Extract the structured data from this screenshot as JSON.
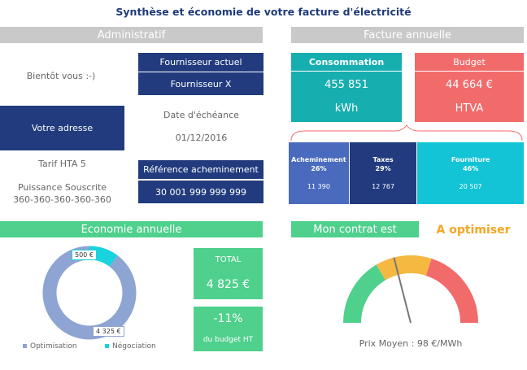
{
  "title": "Synthèse et économie de votre facture d'électricité",
  "administratif": {
    "header": "Administratif",
    "greeting": "Bientôt vous :-)",
    "fournisseur_actuel_label": "Fournisseur actuel",
    "fournisseur_value": "Fournisseur X",
    "adresse_label": "Votre adresse",
    "date_label": "Date d'échéance",
    "date_value": "01/12/2016",
    "tarif": "Tarif HTA 5",
    "puissance_label": "Puissance Souscrite",
    "puissance_value": "360-360-360-360-360",
    "reference_label": "Référence acheminement",
    "reference_value": "30 001 999 999 999"
  },
  "facture": {
    "header": "Facture annuelle",
    "consommation_label": "Consommation",
    "consommation_value": "455 851",
    "consommation_unit": "kWh",
    "budget_label": "Budget",
    "budget_value": "44 664 €",
    "budget_unit": "HTVA",
    "breakdown": [
      {
        "label": "Acheminement",
        "pct": "26%",
        "value": "11 390",
        "share": 0.26,
        "color": "#4a6bbd"
      },
      {
        "label": "Taxes",
        "pct": "29%",
        "value": "12 767",
        "share": 0.29,
        "color": "#223b7e"
      },
      {
        "label": "Fourniture",
        "pct": "46%",
        "value": "20 507",
        "share": 0.46,
        "color": "#12c4d6"
      }
    ]
  },
  "economie": {
    "header": "Economie annuelle",
    "donut": {
      "negociation_value": 500,
      "negociation_label": "500 €",
      "optimisation_value": 4325,
      "optimisation_label": "4 325 €",
      "optimisation_color": "#8ea4d2",
      "negociation_color": "#19d3df"
    },
    "legend_optimisation": "Optimisation",
    "legend_negociation": "Négociation",
    "total_label": "TOTAL",
    "total_value": "4 825 €",
    "pct_value": "-11%",
    "pct_caption": "du budget HT"
  },
  "contrat": {
    "header": "Mon contrat est",
    "status": "A optimiser",
    "status_color": "#f5a623",
    "gauge_level": 0.42,
    "prix_moyen": "Prix Moyen : 98 €/MWh"
  }
}
